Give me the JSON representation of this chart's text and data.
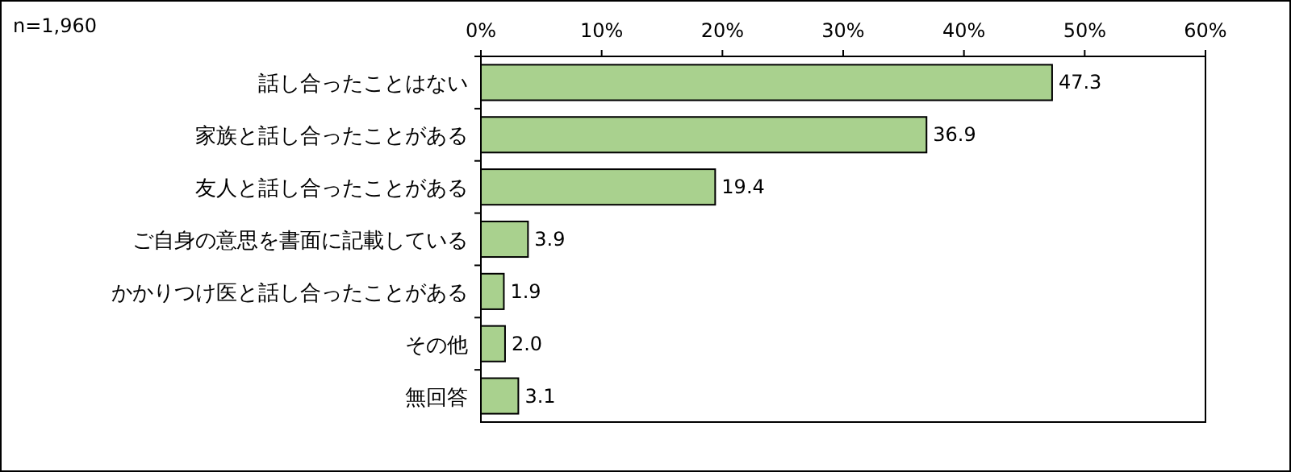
{
  "chart_data": {
    "type": "bar",
    "orientation": "horizontal",
    "annotations": [
      "n=1,960"
    ],
    "categories": [
      "話し合ったことはない",
      "家族と話し合ったことがある",
      "友人と話し合ったことがある",
      "ご自身の意思を書面に記載している",
      "かかりつけ医と話し合ったことがある",
      "その他",
      "無回答"
    ],
    "values": [
      47.3,
      36.9,
      19.4,
      3.9,
      1.9,
      2.0,
      3.1
    ],
    "value_labels": [
      "47.3",
      "36.9",
      "19.4",
      "3.9",
      "1.9",
      "2.0",
      "3.1"
    ],
    "color": "#a9d18e",
    "xlim": [
      0,
      60
    ],
    "xticks": [
      {
        "value": 0,
        "label": "0%"
      },
      {
        "value": 10,
        "label": "10%"
      },
      {
        "value": 20,
        "label": "20%"
      },
      {
        "value": 30,
        "label": "30%"
      },
      {
        "value": 40,
        "label": "40%"
      },
      {
        "value": 50,
        "label": "50%"
      },
      {
        "value": 60,
        "label": "60%"
      }
    ]
  }
}
